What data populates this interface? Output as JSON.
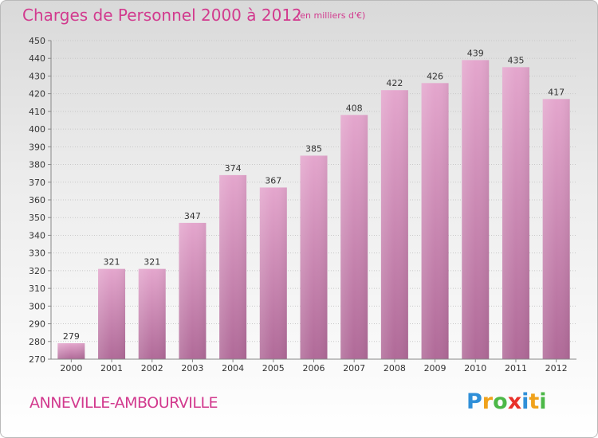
{
  "header": {
    "title": "Charges de Personnel 2000 à 2012",
    "subtitle": "(en milliers d'€)"
  },
  "footer": {
    "commune": "ANNEVILLE-AMBOURVILLE",
    "logo_letters": [
      "P",
      "r",
      "o",
      "x",
      "i",
      "t",
      "i"
    ],
    "logo_colors": [
      "#2f8fd8",
      "#f0a21c",
      "#4cb847",
      "#e8312a",
      "#2f8fd8",
      "#f0a21c",
      "#4cb847"
    ]
  },
  "colors": {
    "bar_top": "#e4a6cd",
    "bar_bottom": "#b06a98",
    "accent": "#d23a8e"
  },
  "chart_data": {
    "type": "bar",
    "categories": [
      "2000",
      "2001",
      "2002",
      "2003",
      "2004",
      "2005",
      "2006",
      "2007",
      "2008",
      "2009",
      "2010",
      "2011",
      "2012"
    ],
    "values": [
      279,
      321,
      321,
      347,
      374,
      367,
      385,
      408,
      422,
      426,
      439,
      435,
      417
    ],
    "data_labels": [
      "279",
      "321",
      "321",
      "347",
      "374",
      "367",
      "385",
      "408",
      "422",
      "426",
      "439",
      "435",
      "417"
    ],
    "yticks": [
      "270",
      "280",
      "290",
      "300",
      "310",
      "320",
      "330",
      "340",
      "350",
      "360",
      "370",
      "380",
      "390",
      "400",
      "410",
      "420",
      "430",
      "440",
      "450"
    ],
    "ylim": [
      270,
      450
    ],
    "grid": true,
    "title": "Charges de Personnel 2000 à 2012",
    "xlabel": "",
    "ylabel": ""
  }
}
